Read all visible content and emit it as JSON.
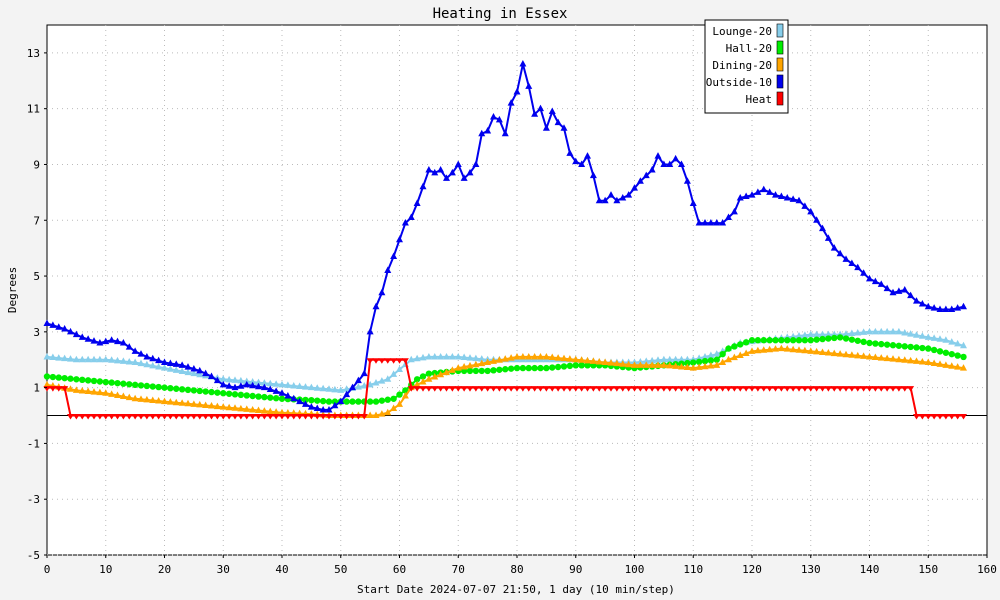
{
  "chart_data": {
    "type": "line",
    "title": "Heating in Essex",
    "xlabel": "Start Date 2024-07-07 21:50, 1 day (10 min/step)",
    "ylabel": "Degrees",
    "xlim": [
      0,
      160
    ],
    "ylim": [
      -5,
      14
    ],
    "xticks": [
      0,
      10,
      20,
      30,
      40,
      50,
      60,
      70,
      80,
      90,
      100,
      110,
      120,
      130,
      140,
      150,
      160
    ],
    "yticks": [
      -5,
      -3,
      -1,
      1,
      3,
      5,
      7,
      9,
      11,
      13
    ],
    "grid": true,
    "legend_position": "top-right",
    "series": [
      {
        "name": "Lounge-20",
        "color": "#87ceeb",
        "marker": "triangle",
        "points": [
          [
            0,
            2.1
          ],
          [
            5,
            2.0
          ],
          [
            10,
            2.0
          ],
          [
            15,
            1.9
          ],
          [
            20,
            1.7
          ],
          [
            25,
            1.5
          ],
          [
            30,
            1.3
          ],
          [
            35,
            1.2
          ],
          [
            40,
            1.1
          ],
          [
            45,
            1.0
          ],
          [
            50,
            0.9
          ],
          [
            55,
            1.1
          ],
          [
            58,
            1.3
          ],
          [
            62,
            2.0
          ],
          [
            65,
            2.1
          ],
          [
            70,
            2.1
          ],
          [
            75,
            2.0
          ],
          [
            80,
            2.0
          ],
          [
            85,
            2.0
          ],
          [
            90,
            2.0
          ],
          [
            95,
            1.9
          ],
          [
            100,
            1.9
          ],
          [
            105,
            2.0
          ],
          [
            110,
            2.0
          ],
          [
            114,
            2.2
          ],
          [
            118,
            2.6
          ],
          [
            122,
            2.7
          ],
          [
            126,
            2.8
          ],
          [
            130,
            2.9
          ],
          [
            135,
            2.9
          ],
          [
            140,
            3.0
          ],
          [
            145,
            3.0
          ],
          [
            150,
            2.8
          ],
          [
            153,
            2.7
          ],
          [
            156,
            2.5
          ]
        ]
      },
      {
        "name": "Hall-20",
        "color": "#00ee00",
        "marker": "circle",
        "points": [
          [
            0,
            1.4
          ],
          [
            5,
            1.3
          ],
          [
            10,
            1.2
          ],
          [
            15,
            1.1
          ],
          [
            20,
            1.0
          ],
          [
            25,
            0.9
          ],
          [
            30,
            0.8
          ],
          [
            35,
            0.7
          ],
          [
            40,
            0.6
          ],
          [
            45,
            0.55
          ],
          [
            48,
            0.5
          ],
          [
            52,
            0.5
          ],
          [
            56,
            0.5
          ],
          [
            59,
            0.6
          ],
          [
            61,
            0.9
          ],
          [
            63,
            1.3
          ],
          [
            65,
            1.5
          ],
          [
            70,
            1.6
          ],
          [
            75,
            1.6
          ],
          [
            80,
            1.7
          ],
          [
            85,
            1.7
          ],
          [
            90,
            1.8
          ],
          [
            95,
            1.8
          ],
          [
            100,
            1.7
          ],
          [
            105,
            1.8
          ],
          [
            110,
            1.9
          ],
          [
            114,
            2.0
          ],
          [
            116,
            2.4
          ],
          [
            120,
            2.7
          ],
          [
            125,
            2.7
          ],
          [
            130,
            2.7
          ],
          [
            135,
            2.8
          ],
          [
            140,
            2.6
          ],
          [
            145,
            2.5
          ],
          [
            150,
            2.4
          ],
          [
            156,
            2.1
          ]
        ]
      },
      {
        "name": "Dining-20",
        "color": "#ffa500",
        "marker": "triangle",
        "points": [
          [
            0,
            1.1
          ],
          [
            5,
            0.9
          ],
          [
            10,
            0.8
          ],
          [
            15,
            0.6
          ],
          [
            20,
            0.5
          ],
          [
            25,
            0.4
          ],
          [
            30,
            0.3
          ],
          [
            35,
            0.2
          ],
          [
            40,
            0.1
          ],
          [
            45,
            0.05
          ],
          [
            48,
            0.0
          ],
          [
            52,
            0.0
          ],
          [
            56,
            0.0
          ],
          [
            58,
            0.1
          ],
          [
            60,
            0.4
          ],
          [
            62,
            1.0
          ],
          [
            65,
            1.3
          ],
          [
            70,
            1.7
          ],
          [
            75,
            1.9
          ],
          [
            80,
            2.1
          ],
          [
            85,
            2.1
          ],
          [
            90,
            2.0
          ],
          [
            95,
            1.9
          ],
          [
            100,
            1.8
          ],
          [
            105,
            1.8
          ],
          [
            110,
            1.7
          ],
          [
            114,
            1.8
          ],
          [
            116,
            2.0
          ],
          [
            120,
            2.3
          ],
          [
            125,
            2.4
          ],
          [
            130,
            2.3
          ],
          [
            135,
            2.2
          ],
          [
            140,
            2.1
          ],
          [
            145,
            2.0
          ],
          [
            150,
            1.9
          ],
          [
            156,
            1.7
          ]
        ]
      },
      {
        "name": "Outside-10",
        "color": "#0000ee",
        "marker": "triangle",
        "points": [
          [
            0,
            3.3
          ],
          [
            3,
            3.1
          ],
          [
            6,
            2.8
          ],
          [
            9,
            2.6
          ],
          [
            11,
            2.7
          ],
          [
            13,
            2.6
          ],
          [
            15,
            2.3
          ],
          [
            17,
            2.1
          ],
          [
            20,
            1.9
          ],
          [
            23,
            1.8
          ],
          [
            26,
            1.6
          ],
          [
            28,
            1.4
          ],
          [
            30,
            1.1
          ],
          [
            32,
            1.0
          ],
          [
            34,
            1.1
          ],
          [
            37,
            1.0
          ],
          [
            40,
            0.8
          ],
          [
            43,
            0.5
          ],
          [
            45,
            0.3
          ],
          [
            47,
            0.2
          ],
          [
            48,
            0.2
          ],
          [
            50,
            0.5
          ],
          [
            52,
            1.0
          ],
          [
            54,
            1.5
          ],
          [
            55,
            3.0
          ],
          [
            56,
            3.9
          ],
          [
            57,
            4.4
          ],
          [
            58,
            5.2
          ],
          [
            59,
            5.7
          ],
          [
            60,
            6.3
          ],
          [
            61,
            6.9
          ],
          [
            62,
            7.1
          ],
          [
            63,
            7.6
          ],
          [
            64,
            8.2
          ],
          [
            65,
            8.8
          ],
          [
            66,
            8.7
          ],
          [
            67,
            8.8
          ],
          [
            68,
            8.5
          ],
          [
            69,
            8.7
          ],
          [
            70,
            9.0
          ],
          [
            71,
            8.5
          ],
          [
            72,
            8.7
          ],
          [
            73,
            9.0
          ],
          [
            74,
            10.1
          ],
          [
            75,
            10.2
          ],
          [
            76,
            10.7
          ],
          [
            77,
            10.6
          ],
          [
            78,
            10.1
          ],
          [
            79,
            11.2
          ],
          [
            80,
            11.6
          ],
          [
            81,
            12.6
          ],
          [
            82,
            11.8
          ],
          [
            83,
            10.8
          ],
          [
            84,
            11.0
          ],
          [
            85,
            10.3
          ],
          [
            86,
            10.9
          ],
          [
            87,
            10.5
          ],
          [
            88,
            10.3
          ],
          [
            89,
            9.4
          ],
          [
            90,
            9.1
          ],
          [
            91,
            9.0
          ],
          [
            92,
            9.3
          ],
          [
            93,
            8.6
          ],
          [
            94,
            7.7
          ],
          [
            95,
            7.7
          ],
          [
            96,
            7.9
          ],
          [
            97,
            7.7
          ],
          [
            99,
            7.9
          ],
          [
            101,
            8.4
          ],
          [
            103,
            8.8
          ],
          [
            104,
            9.3
          ],
          [
            105,
            9.0
          ],
          [
            106,
            9.0
          ],
          [
            107,
            9.2
          ],
          [
            108,
            9.0
          ],
          [
            109,
            8.4
          ],
          [
            110,
            7.6
          ],
          [
            111,
            6.9
          ],
          [
            113,
            6.9
          ],
          [
            115,
            6.9
          ],
          [
            117,
            7.3
          ],
          [
            118,
            7.8
          ],
          [
            120,
            7.9
          ],
          [
            122,
            8.1
          ],
          [
            124,
            7.9
          ],
          [
            126,
            7.8
          ],
          [
            128,
            7.7
          ],
          [
            130,
            7.3
          ],
          [
            132,
            6.7
          ],
          [
            134,
            6.0
          ],
          [
            136,
            5.6
          ],
          [
            138,
            5.3
          ],
          [
            140,
            4.9
          ],
          [
            142,
            4.7
          ],
          [
            144,
            4.4
          ],
          [
            146,
            4.5
          ],
          [
            148,
            4.1
          ],
          [
            150,
            3.9
          ],
          [
            152,
            3.8
          ],
          [
            154,
            3.8
          ],
          [
            156,
            3.9
          ]
        ]
      },
      {
        "name": "Heat",
        "color": "#ff0000",
        "marker": "triangle-down",
        "points": [
          [
            0,
            1.0
          ],
          [
            3,
            1.0
          ],
          [
            4,
            0.0
          ],
          [
            54,
            0.0
          ],
          [
            55,
            2.0
          ],
          [
            61,
            2.0
          ],
          [
            62,
            1.0
          ],
          [
            147,
            1.0
          ],
          [
            148,
            0.0
          ],
          [
            156,
            0.0
          ]
        ]
      }
    ]
  }
}
